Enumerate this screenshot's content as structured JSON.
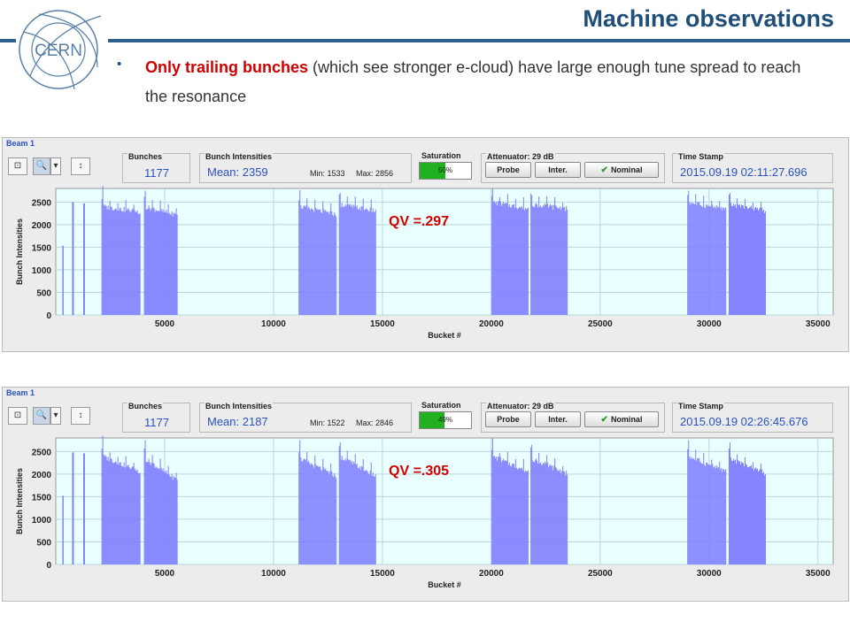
{
  "slide": {
    "title": "Machine observations",
    "logo_text": "CERN",
    "bullet": {
      "highlight": "Only trailing bunches",
      "rest": " (which see stronger e-cloud) have large enough tune spread to reach the resonance"
    }
  },
  "colors": {
    "title": "#1f4e79",
    "highlight": "#d00000",
    "bars": "#8080ff",
    "plot_bg": "#eaffff",
    "field_value": "#2a52be"
  },
  "panels": [
    {
      "beam_label": "Beam 1",
      "bunches_label": "Bunches",
      "bunches_value": "1177",
      "intens_label": "Bunch Intensities",
      "mean": "Mean: 2359",
      "min": "Min: 1533",
      "max": "Max: 2856",
      "sat_label": "Saturation",
      "sat_text": "50%",
      "sat_fraction": 0.5,
      "att_label": "Attenuator: 29 dB",
      "btn_probe": "Probe",
      "btn_inter": "Inter.",
      "btn_nominal": "Nominal",
      "ts_label": "Time Stamp",
      "ts_value": "2015.09.19 02:11:27.696",
      "qv": "QV =.297"
    },
    {
      "beam_label": "Beam 1",
      "bunches_label": "Bunches",
      "bunches_value": "1177",
      "intens_label": "Bunch Intensities",
      "mean": "Mean: 2187",
      "min": "Min: 1522",
      "max": "Max: 2846",
      "sat_label": "Saturation",
      "sat_text": "49%",
      "sat_fraction": 0.49,
      "att_label": "Attenuator: 29 dB",
      "btn_probe": "Probe",
      "btn_inter": "Inter.",
      "btn_nominal": "Nominal",
      "ts_label": "Time Stamp",
      "ts_value": "2015.09.19 02:26:45.676",
      "qv": "QV =.305"
    }
  ],
  "toolbar_icons": [
    "reset-zoom-icon",
    "zoom-icon",
    "dropdown-arrow-icon",
    "vertical-scale-icon"
  ],
  "chart_data": [
    {
      "type": "bar",
      "title": "",
      "xlabel": "Bucket #",
      "ylabel": "Bunch Intensities",
      "xlim": [
        0,
        35700
      ],
      "ylim": [
        0,
        2800
      ],
      "xticks": [
        5000,
        10000,
        15000,
        20000,
        25000,
        30000,
        35000
      ],
      "yticks": [
        0,
        500,
        1000,
        1500,
        2000,
        2500
      ],
      "grid": true,
      "trains": [
        {
          "start": 300,
          "end": 340,
          "value": 1533
        },
        {
          "start": 750,
          "end": 830,
          "value": 2500
        },
        {
          "start": 1260,
          "end": 1340,
          "value": 2470
        },
        {
          "start": 2100,
          "end": 3900,
          "top": 2400,
          "bottom": 2280,
          "peak": 2856
        },
        {
          "start": 4050,
          "end": 5600,
          "top": 2400,
          "bottom": 2200,
          "peak": 2750
        },
        {
          "start": 11150,
          "end": 12900,
          "top": 2400,
          "bottom": 2220,
          "peak": 2760
        },
        {
          "start": 13000,
          "end": 14700,
          "top": 2450,
          "bottom": 2300,
          "peak": 2700
        },
        {
          "start": 20000,
          "end": 21700,
          "top": 2500,
          "bottom": 2350,
          "peak": 2800
        },
        {
          "start": 21800,
          "end": 23500,
          "top": 2450,
          "bottom": 2350,
          "peak": 2650
        },
        {
          "start": 29000,
          "end": 30800,
          "top": 2500,
          "bottom": 2330,
          "peak": 2750
        },
        {
          "start": 30900,
          "end": 32600,
          "top": 2450,
          "bottom": 2300,
          "peak": 2700
        }
      ]
    },
    {
      "type": "bar",
      "title": "",
      "xlabel": "Bucket #",
      "ylabel": "Bunch Intensities",
      "xlim": [
        0,
        35700
      ],
      "ylim": [
        0,
        2800
      ],
      "xticks": [
        5000,
        10000,
        15000,
        20000,
        25000,
        30000,
        35000
      ],
      "yticks": [
        0,
        500,
        1000,
        1500,
        2000,
        2500
      ],
      "grid": true,
      "trains": [
        {
          "start": 300,
          "end": 340,
          "value": 1522
        },
        {
          "start": 750,
          "end": 830,
          "value": 2480
        },
        {
          "start": 1260,
          "end": 1340,
          "value": 2460
        },
        {
          "start": 2100,
          "end": 3900,
          "top": 2400,
          "bottom": 2050,
          "peak": 2846
        },
        {
          "start": 4050,
          "end": 5600,
          "top": 2350,
          "bottom": 1850,
          "peak": 2750
        },
        {
          "start": 11150,
          "end": 12900,
          "top": 2350,
          "bottom": 1950,
          "peak": 2750
        },
        {
          "start": 13000,
          "end": 14700,
          "top": 2400,
          "bottom": 1950,
          "peak": 2700
        },
        {
          "start": 20000,
          "end": 21700,
          "top": 2400,
          "bottom": 2050,
          "peak": 2800
        },
        {
          "start": 21800,
          "end": 23500,
          "top": 2350,
          "bottom": 2000,
          "peak": 2650
        },
        {
          "start": 29000,
          "end": 30800,
          "top": 2400,
          "bottom": 2050,
          "peak": 2750
        },
        {
          "start": 30900,
          "end": 32600,
          "top": 2350,
          "bottom": 2000,
          "peak": 2700
        }
      ]
    }
  ]
}
